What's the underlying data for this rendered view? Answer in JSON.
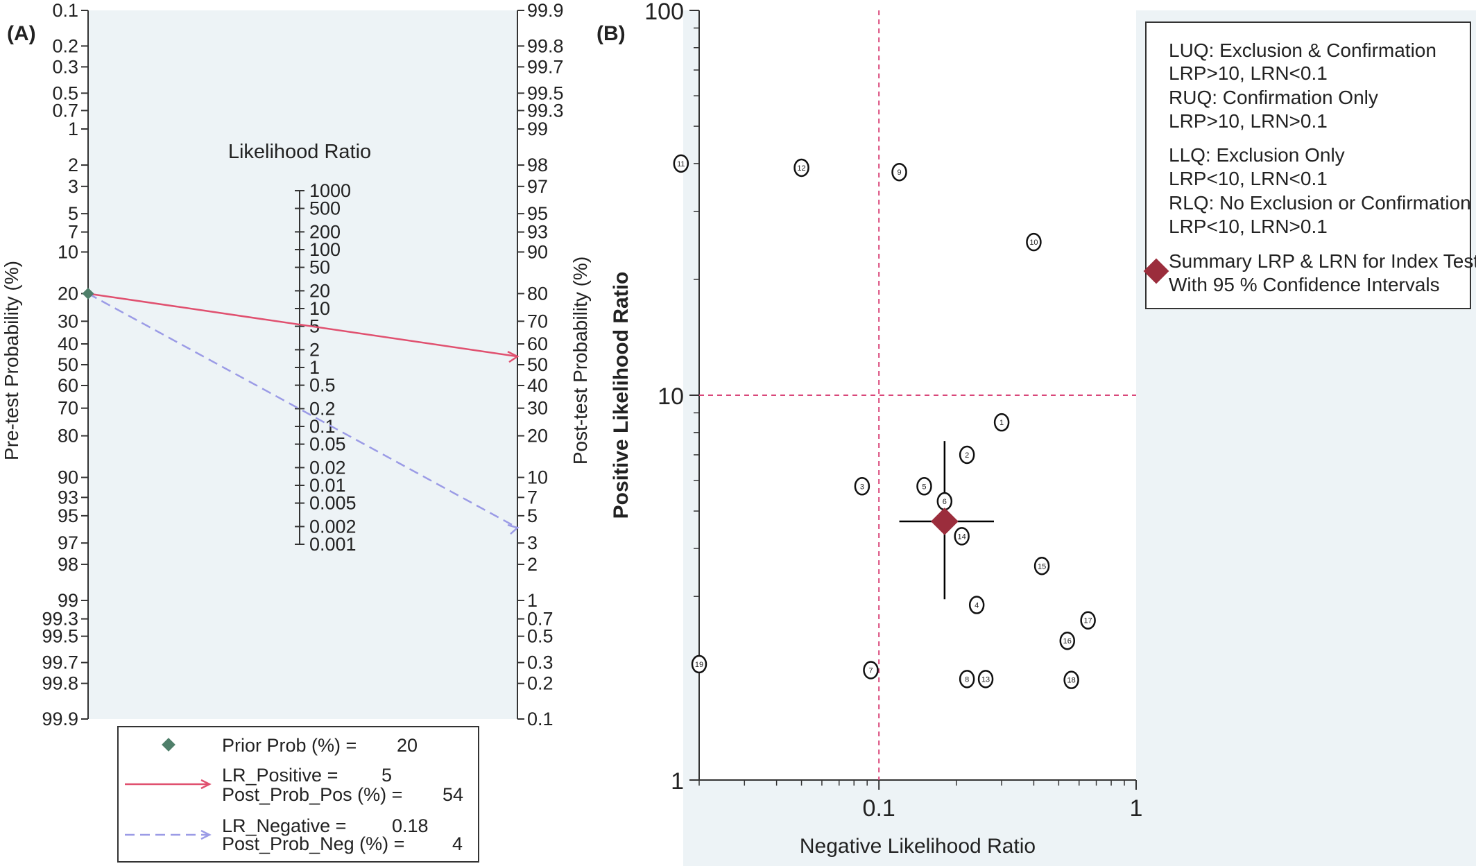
{
  "chart_data": [
    {
      "panel_label": "(A)",
      "type": "nomogram",
      "left_axis": {
        "label": "Pre-test Probability (%)",
        "ticks": [
          0.1,
          0.2,
          0.3,
          0.5,
          0.7,
          1,
          2,
          3,
          5,
          7,
          10,
          20,
          30,
          40,
          50,
          60,
          70,
          80,
          90,
          93,
          95,
          97,
          98,
          99,
          99.3,
          99.5,
          99.7,
          99.8,
          99.9
        ]
      },
      "right_axis": {
        "label": "Post-test Probability (%)",
        "ticks": [
          99.9,
          99.8,
          99.7,
          99.5,
          99.3,
          99,
          98,
          97,
          95,
          93,
          90,
          80,
          70,
          60,
          50,
          40,
          30,
          20,
          10,
          7,
          5,
          3,
          2,
          1,
          0.7,
          0.5,
          0.3,
          0.2,
          0.1
        ]
      },
      "lr_axis": {
        "label": "Likelihood Ratio",
        "ticks": [
          1000,
          500,
          200,
          100,
          50,
          20,
          10,
          5,
          2,
          1,
          0.5,
          0.2,
          0.1,
          0.05,
          0.02,
          0.01,
          0.005,
          0.002,
          0.001
        ]
      },
      "prior_prob": 20,
      "lr_positive": 5,
      "post_prob_pos": 54,
      "lr_negative": 0.18,
      "post_prob_neg": 4,
      "colors": {
        "positive": "#e0506f",
        "negative": "#9b9be6",
        "prior": "#4f7f6a"
      },
      "legend": {
        "placement": "bottom",
        "prior_label": "Prior Prob (%) =",
        "prior_value": "20",
        "lrp_label": "LR_Positive =",
        "lrp_value": "5",
        "ppp_label": "Post_Prob_Pos (%) =",
        "ppp_value": "54",
        "lrn_label": "LR_Negative =",
        "lrn_value": "0.18",
        "ppn_label": "Post_Prob_Neg (%) =",
        "ppn_value": "4"
      }
    },
    {
      "panel_label": "(B)",
      "type": "scatter",
      "xlabel": "Negative Likelihood Ratio",
      "ylabel": "Positive Likelihood Ratio",
      "x_scale": "log",
      "y_scale": "log",
      "xlim": [
        0.02,
        1
      ],
      "ylim": [
        1,
        100
      ],
      "x_ticks": [
        {
          "v": 0.1,
          "label": "0.1"
        },
        {
          "v": 1,
          "label": "1"
        }
      ],
      "y_ticks": [
        {
          "v": 1,
          "label": "1"
        },
        {
          "v": 10,
          "label": "10"
        },
        {
          "v": 100,
          "label": "100"
        }
      ],
      "reference_lines": {
        "x": 0.1,
        "y": 10,
        "color": "#d9477a"
      },
      "points": [
        {
          "id": "1",
          "x": 0.3,
          "y": 8.5
        },
        {
          "id": "2",
          "x": 0.22,
          "y": 7.0
        },
        {
          "id": "3",
          "x": 0.086,
          "y": 5.8
        },
        {
          "id": "4",
          "x": 0.24,
          "y": 2.85
        },
        {
          "id": "5",
          "x": 0.15,
          "y": 5.8
        },
        {
          "id": "6",
          "x": 0.18,
          "y": 5.3
        },
        {
          "id": "7",
          "x": 0.093,
          "y": 1.93
        },
        {
          "id": "8",
          "x": 0.22,
          "y": 1.83
        },
        {
          "id": "9",
          "x": 0.12,
          "y": 38
        },
        {
          "id": "10",
          "x": 0.4,
          "y": 25
        },
        {
          "id": "11",
          "x": 0.017,
          "y": 40
        },
        {
          "id": "12",
          "x": 0.05,
          "y": 39
        },
        {
          "id": "13",
          "x": 0.26,
          "y": 1.83
        },
        {
          "id": "14",
          "x": 0.21,
          "y": 4.3
        },
        {
          "id": "15",
          "x": 0.43,
          "y": 3.6
        },
        {
          "id": "16",
          "x": 0.54,
          "y": 2.3
        },
        {
          "id": "17",
          "x": 0.65,
          "y": 2.6
        },
        {
          "id": "18",
          "x": 0.56,
          "y": 1.82
        },
        {
          "id": "19",
          "x": 0.02,
          "y": 2.0
        }
      ],
      "summary": {
        "x": 0.18,
        "y": 4.7,
        "x_ci": [
          0.12,
          0.28
        ],
        "y_ci": [
          2.95,
          7.6
        ],
        "color": "#9b2d3c"
      },
      "legend": {
        "placement": "top-right",
        "lines": [
          "LUQ: Exclusion & Confirmation",
          "LRP>10, LRN<0.1",
          "RUQ: Confirmation Only",
          "LRP>10, LRN>0.1",
          "LLQ: Exclusion Only",
          "LRP<10, LRN<0.1",
          "RLQ: No Exclusion or Confirmation",
          "LRP<10, LRN>0.1"
        ],
        "summary_lines": [
          "Summary LRP & LRN for Index Test",
          "With 95 % Confidence Intervals"
        ]
      }
    }
  ]
}
